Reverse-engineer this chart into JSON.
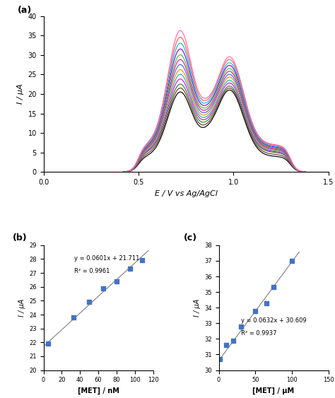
{
  "panel_a": {
    "label": "(a)",
    "xlabel": "E / V vs Ag/AgCl",
    "ylabel": "I / μA",
    "xlim": [
      0,
      1.5
    ],
    "ylim": [
      0,
      40
    ],
    "xticks": [
      0,
      0.5,
      1.0,
      1.5
    ],
    "yticks": [
      0,
      5,
      10,
      15,
      20,
      25,
      30,
      35,
      40
    ],
    "curves": [
      {
        "color": "#000000",
        "base": 4.0,
        "peak1_y": 20.5,
        "valley_y": 13.5,
        "peak2_y": 21.0
      },
      {
        "color": "#6B3A2A",
        "base": 4.5,
        "peak1_y": 21.5,
        "valley_y": 14.2,
        "peak2_y": 21.5
      },
      {
        "color": "#228B22",
        "base": 5.0,
        "peak1_y": 22.5,
        "valley_y": 15.0,
        "peak2_y": 22.0
      },
      {
        "color": "#FF00FF",
        "base": 5.2,
        "peak1_y": 23.8,
        "valley_y": 15.8,
        "peak2_y": 22.8
      },
      {
        "color": "#20B2AA",
        "base": 5.4,
        "peak1_y": 25.0,
        "valley_y": 16.5,
        "peak2_y": 23.5
      },
      {
        "color": "#FF8C00",
        "base": 5.6,
        "peak1_y": 26.2,
        "valley_y": 17.3,
        "peak2_y": 24.3
      },
      {
        "color": "#4169E1",
        "base": 5.8,
        "peak1_y": 27.5,
        "valley_y": 18.0,
        "peak2_y": 25.0
      },
      {
        "color": "#FF1493",
        "base": 6.0,
        "peak1_y": 28.8,
        "valley_y": 18.8,
        "peak2_y": 25.8
      },
      {
        "color": "#32CD32",
        "base": 6.2,
        "peak1_y": 30.0,
        "valley_y": 19.5,
        "peak2_y": 26.5
      },
      {
        "color": "#9400D3",
        "base": 6.4,
        "peak1_y": 31.5,
        "valley_y": 20.3,
        "peak2_y": 27.3
      },
      {
        "color": "#00BFFF",
        "base": 6.6,
        "peak1_y": 33.0,
        "valley_y": 21.0,
        "peak2_y": 28.0
      },
      {
        "color": "#FF6347",
        "base": 6.8,
        "peak1_y": 34.5,
        "valley_y": 21.8,
        "peak2_y": 28.8
      },
      {
        "color": "#FF69B4",
        "base": 7.0,
        "peak1_y": 36.2,
        "valley_y": 22.5,
        "peak2_y": 29.5
      }
    ],
    "peak1_x": 0.72,
    "peak2_x": 0.98,
    "valley_x": 0.855,
    "sigma1": 0.065,
    "sigma2": 0.072,
    "x_start": 0.42,
    "x_end": 1.38
  },
  "panel_b": {
    "label": "(b)",
    "xlabel": "[MET] / nM",
    "ylabel": "I / μA",
    "xlim": [
      0,
      120
    ],
    "ylim": [
      20,
      29
    ],
    "xticks": [
      0,
      20,
      40,
      60,
      80,
      100,
      120
    ],
    "yticks": [
      20,
      21,
      22,
      23,
      24,
      25,
      26,
      27,
      28,
      29
    ],
    "x_data": [
      5,
      33,
      50,
      65,
      80,
      95,
      108
    ],
    "y_data": [
      21.9,
      23.8,
      24.9,
      25.9,
      26.4,
      27.3,
      27.9
    ],
    "slope": 0.0601,
    "intercept": 21.711,
    "equation": "y = 0.0601x + 21.711",
    "r2": "R² = 0.9961",
    "line_color": "#808080",
    "marker_color": "#4472C4"
  },
  "panel_c": {
    "label": "(c)",
    "xlabel": "[MET] / μM",
    "ylabel": "I / μA",
    "xlim": [
      0,
      150
    ],
    "ylim": [
      30,
      38
    ],
    "xticks": [
      0,
      50,
      100,
      150
    ],
    "yticks": [
      30,
      31,
      32,
      33,
      34,
      35,
      36,
      37,
      38
    ],
    "x_data": [
      1,
      10,
      20,
      30,
      50,
      65,
      75,
      100
    ],
    "y_data": [
      30.7,
      31.6,
      31.9,
      32.8,
      33.8,
      34.3,
      35.3,
      37.0
    ],
    "slope": 0.0632,
    "intercept": 30.609,
    "equation": "y = 0.0632x + 30.609",
    "r2": "R² = 0.9937",
    "line_color": "#808080",
    "marker_color": "#4472C4"
  }
}
